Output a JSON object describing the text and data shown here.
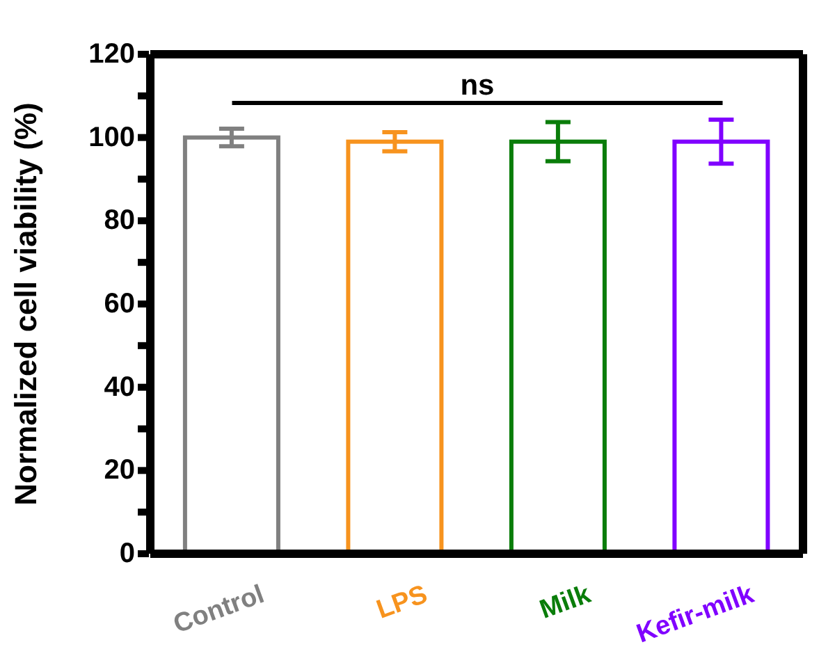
{
  "chart_data": {
    "type": "bar",
    "ylabel": "Normalized cell viability (%)",
    "categories": [
      "Control",
      "LPS",
      "Milk",
      "Kefir-milk"
    ],
    "values": [
      100,
      99,
      99,
      99
    ],
    "colors": [
      "#808080",
      "#f7931e",
      "#0a7d0a",
      "#8000ff"
    ],
    "errors": [
      2.1,
      2.3,
      4.7,
      5.3
    ],
    "ylim": [
      0,
      120
    ],
    "yticks": [
      0,
      {
        "value": 10,
        "label": null
      },
      20,
      {
        "value": 30,
        "label": null
      },
      40,
      {
        "value": 50,
        "label": null
      },
      60,
      {
        "value": 70,
        "label": null
      },
      80,
      {
        "value": 90,
        "label": null
      },
      100,
      {
        "value": 110,
        "label": null
      },
      120
    ],
    "annotations": [
      "ns"
    ],
    "grid": false,
    "legend": false
  }
}
